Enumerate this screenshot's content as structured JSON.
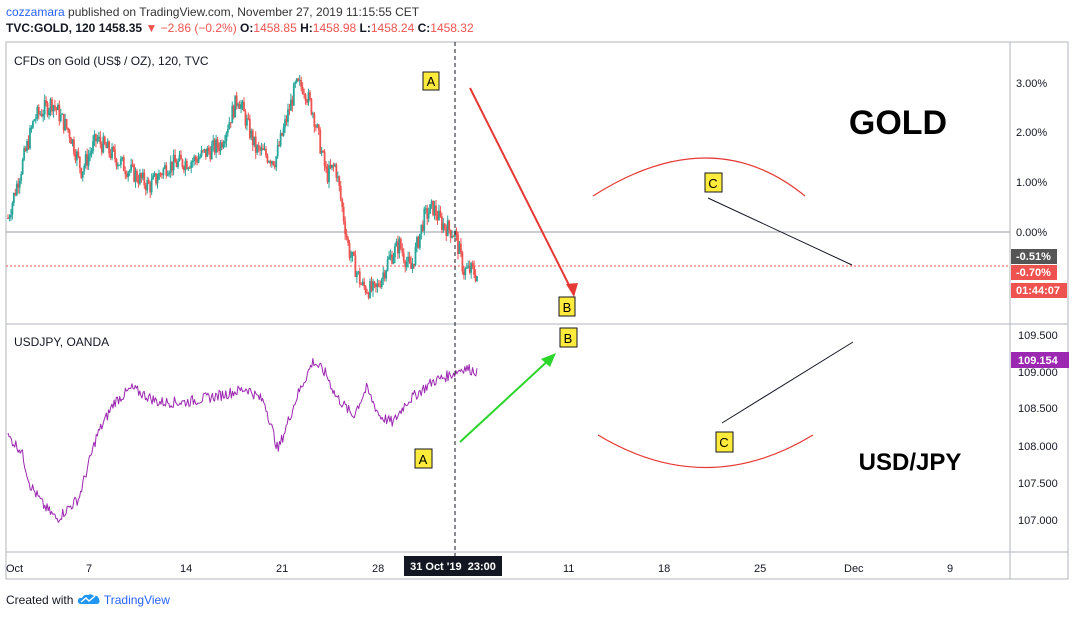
{
  "header": {
    "user": "cozzamara",
    "published": "published on TradingView.com, November 27, 2019 11:15:55 CET",
    "symbol": "TVC:GOLD, 120",
    "last": "1458.35",
    "change": "▼ −2.86 (−0.2%)",
    "o_label": "O:",
    "o_val": "1458.85",
    "h_label": "H:",
    "h_val": "1458.98",
    "l_label": "L:",
    "l_val": "1458.24",
    "c_label": "C:",
    "c_val": "1458.32"
  },
  "footer": {
    "created_with": "Created with",
    "brand": "TradingView"
  },
  "colors": {
    "up": "#26a69a",
    "down": "#ef5350",
    "usdjpy": "#9c27b0",
    "label_bg": "#ffeb3b"
  },
  "chart_data": [
    {
      "type": "candlestick",
      "title": "CFDs on Gold (US$ / OZ), 120, TVC",
      "big_label": "GOLD",
      "y_ticks": [
        "3.00%",
        "2.00%",
        "1.00%",
        "0.00%"
      ],
      "price_tags": [
        "-0.51%",
        "-0.70%",
        "01:44:07"
      ],
      "ylim_percent": [
        -1.5,
        3.4
      ],
      "series": [
        {
          "name": "Gold",
          "x": [
            0,
            3,
            5,
            7,
            8.3,
            10,
            13,
            16,
            18,
            21,
            24,
            26,
            28,
            30.2,
            32.5,
            33.4,
            34.5,
            36,
            37,
            38.5,
            40,
            41.5,
            43,
            44.2,
            45.5,
            47,
            48,
            49,
            50.5,
            51.5,
            52.5,
            53
          ],
          "values": [
            0.4,
            2.3,
            2.6,
            2.0,
            1.3,
            1.9,
            1.4,
            1.0,
            1.4,
            1.5,
            1.8,
            2.7,
            1.7,
            1.5,
            2.9,
            2.9,
            2.4,
            1.2,
            1.4,
            -0.2,
            -0.9,
            -1.0,
            -0.4,
            -0.1,
            -0.6,
            0.4,
            0.6,
            0.3,
            0.1,
            -0.6,
            -0.6,
            -0.7
          ]
        }
      ],
      "annotations": [
        "A",
        "B",
        "C"
      ]
    },
    {
      "type": "line",
      "title": "USDJPY, OANDA",
      "big_label": "USD/JPY",
      "y_ticks": [
        "109.500",
        "109.000",
        "108.500",
        "108.000",
        "107.500",
        "107.000"
      ],
      "price_tag": "109.154",
      "ylim": [
        106.55,
        109.75
      ],
      "series": [
        {
          "name": "USDJPY",
          "x": [
            0,
            1.5,
            2.5,
            4,
            5.5,
            8,
            10,
            12,
            14,
            17,
            20,
            24,
            27,
            29,
            30.5,
            32.7,
            34.5,
            36,
            37,
            39,
            40.5,
            42,
            43.5,
            45,
            46,
            47,
            48,
            50,
            51.5,
            53
          ],
          "values": [
            108.2,
            108.0,
            107.5,
            107.2,
            107.0,
            107.3,
            108.2,
            108.7,
            108.9,
            108.7,
            108.7,
            108.8,
            108.9,
            108.7,
            108.0,
            108.8,
            109.3,
            109.1,
            108.8,
            108.5,
            108.9,
            108.5,
            108.4,
            108.7,
            108.8,
            108.9,
            109.0,
            109.1,
            109.2,
            109.15
          ]
        }
      ],
      "annotations": [
        "A",
        "B",
        "C"
      ]
    }
  ],
  "x_axis": {
    "ticks": [
      "Oct",
      "7",
      "14",
      "21",
      "28",
      "11",
      "18",
      "25",
      "Dec",
      "9"
    ],
    "crosshair_label": "31 Oct '19  23:00"
  }
}
